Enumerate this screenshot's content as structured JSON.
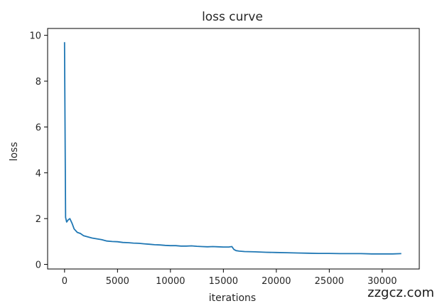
{
  "chart_data": {
    "type": "line",
    "title": "loss curve",
    "xlabel": "iterations",
    "ylabel": "loss",
    "xlim": [
      -1600,
      33500
    ],
    "ylim": [
      -0.2,
      10.3
    ],
    "xticks": [
      0,
      5000,
      10000,
      15000,
      20000,
      25000,
      30000
    ],
    "xtick_labels": [
      "0",
      "5000",
      "10000",
      "15000",
      "20000",
      "25000",
      "30000"
    ],
    "yticks": [
      0,
      2,
      4,
      6,
      8,
      10
    ],
    "ytick_labels": [
      "0",
      "2",
      "4",
      "6",
      "8",
      "10"
    ],
    "grid": false,
    "series": [
      {
        "color": "#1f77b4",
        "x": [
          0,
          100,
          200,
          350,
          500,
          700,
          900,
          1200,
          1500,
          1800,
          2200,
          2600,
          3000,
          3500,
          4000,
          4500,
          5000,
          5500,
          6000,
          6500,
          7000,
          7500,
          8000,
          8500,
          9000,
          9500,
          10000,
          10500,
          11000,
          11500,
          12000,
          12500,
          13000,
          13500,
          14000,
          14500,
          15000,
          15500,
          15800,
          16000,
          16200,
          16500,
          17000,
          18000,
          19000,
          20000,
          21000,
          22000,
          23000,
          24000,
          25000,
          26000,
          27000,
          28000,
          29000,
          30000,
          31000,
          31800
        ],
        "y": [
          9.7,
          2.05,
          1.85,
          1.95,
          2.0,
          1.8,
          1.55,
          1.4,
          1.35,
          1.25,
          1.2,
          1.15,
          1.12,
          1.08,
          1.02,
          1.0,
          0.99,
          0.96,
          0.95,
          0.93,
          0.92,
          0.9,
          0.88,
          0.86,
          0.85,
          0.83,
          0.82,
          0.82,
          0.8,
          0.8,
          0.81,
          0.79,
          0.78,
          0.77,
          0.78,
          0.77,
          0.76,
          0.76,
          0.78,
          0.65,
          0.6,
          0.58,
          0.56,
          0.55,
          0.53,
          0.52,
          0.51,
          0.5,
          0.49,
          0.48,
          0.48,
          0.47,
          0.47,
          0.47,
          0.46,
          0.46,
          0.46,
          0.47
        ]
      }
    ]
  },
  "watermark": "zzgcz.com"
}
